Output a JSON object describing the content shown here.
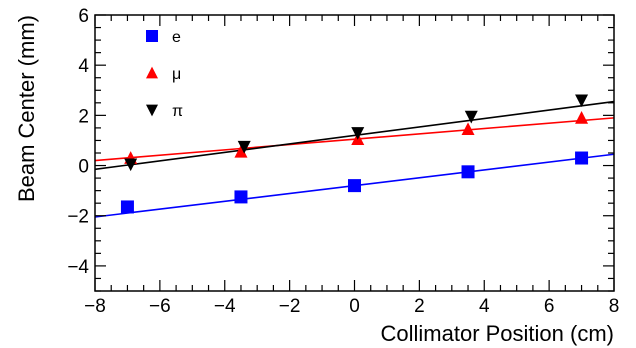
{
  "chart_data": {
    "type": "scatter",
    "title": "",
    "xlabel": "Collimator Position (cm)",
    "ylabel": "Beam Center (mm)",
    "xlim": [
      -8,
      8
    ],
    "ylim": [
      -5,
      6
    ],
    "x_ticks": [
      -8,
      -6,
      -4,
      -2,
      0,
      2,
      4,
      6,
      8
    ],
    "y_ticks": [
      -4,
      -2,
      0,
      2,
      4,
      6
    ],
    "x_tick_labels": [
      "−8",
      "−6",
      "−4",
      "−2",
      "0",
      "2",
      "4",
      "6",
      "8"
    ],
    "y_tick_labels": [
      "−4",
      "−2",
      "0",
      "2",
      "4",
      "6"
    ],
    "grid": false,
    "legend_position": "top-left",
    "series": [
      {
        "name": "e",
        "marker": "square",
        "color": "#0000ff",
        "points": [
          {
            "x": -7.0,
            "y": -1.65
          },
          {
            "x": -3.5,
            "y": -1.25
          },
          {
            "x": 0.0,
            "y": -0.8
          },
          {
            "x": 3.5,
            "y": -0.25
          },
          {
            "x": 7.0,
            "y": 0.3
          }
        ],
        "fit": {
          "x": [
            -8,
            8
          ],
          "y": [
            -2.05,
            0.45
          ],
          "color": "#0000ff"
        }
      },
      {
        "name": "μ",
        "marker": "triangle-up",
        "color": "#ff0000",
        "points": [
          {
            "x": -6.9,
            "y": 0.3
          },
          {
            "x": -3.5,
            "y": 0.55
          },
          {
            "x": 0.1,
            "y": 1.05
          },
          {
            "x": 3.5,
            "y": 1.45
          },
          {
            "x": 7.0,
            "y": 1.9
          }
        ],
        "fit": {
          "x": [
            -8,
            8
          ],
          "y": [
            0.2,
            1.9
          ],
          "color": "#ff0000"
        }
      },
      {
        "name": "π",
        "marker": "triangle-down",
        "color": "#000000",
        "points": [
          {
            "x": -6.9,
            "y": 0.05
          },
          {
            "x": -3.4,
            "y": 0.75
          },
          {
            "x": 0.1,
            "y": 1.3
          },
          {
            "x": 3.6,
            "y": 1.95
          },
          {
            "x": 7.0,
            "y": 2.6
          }
        ],
        "fit": {
          "x": [
            -8,
            8
          ],
          "y": [
            -0.15,
            2.55
          ],
          "color": "#000000"
        }
      }
    ]
  }
}
